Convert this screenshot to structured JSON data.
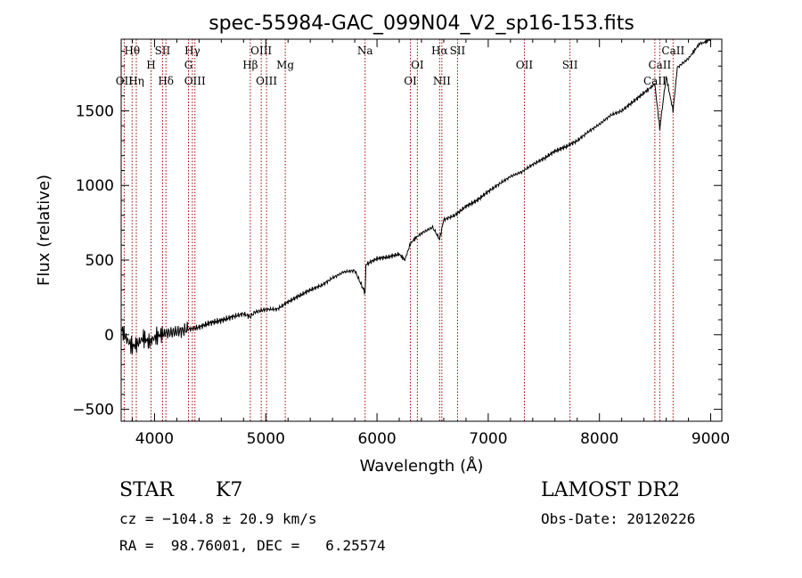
{
  "chart_data": {
    "type": "line",
    "title": "spec-55984-GAC_099N04_V2_sp16-153.fits",
    "xlabel": "Wavelength (Å)",
    "ylabel": "Flux (relative)",
    "xlim": [
      3700,
      9100
    ],
    "ylim": [
      -580,
      1980
    ],
    "xticks": [
      4000,
      5000,
      6000,
      7000,
      8000,
      9000
    ],
    "yticks": [
      -500,
      0,
      500,
      1000,
      1500
    ],
    "grid": false,
    "series": [
      {
        "x": [
          3700,
          3750,
          3800,
          3850,
          3900,
          3950,
          4000,
          4050,
          4100,
          4200,
          4300,
          4400,
          4500,
          4600,
          4700,
          4800,
          4860,
          4900,
          5000,
          5100,
          5200,
          5300,
          5400,
          5500,
          5600,
          5700,
          5800,
          5893,
          5900,
          6000,
          6100,
          6200,
          6250,
          6300,
          6350,
          6400,
          6500,
          6563,
          6600,
          6700,
          6800,
          6900,
          7000,
          7100,
          7200,
          7300,
          7400,
          7500,
          7600,
          7700,
          7800,
          7900,
          8000,
          8100,
          8200,
          8300,
          8400,
          8498,
          8542,
          8600,
          8662,
          8700,
          8800,
          8850,
          8900,
          8950,
          9000
        ],
        "y": [
          40,
          -30,
          -80,
          -60,
          -20,
          -50,
          -20,
          0,
          10,
          20,
          35,
          50,
          80,
          95,
          120,
          140,
          120,
          150,
          170,
          170,
          220,
          260,
          300,
          330,
          380,
          420,
          430,
          280,
          470,
          510,
          520,
          540,
          500,
          610,
          650,
          680,
          720,
          640,
          770,
          800,
          860,
          900,
          960,
          1010,
          1060,
          1090,
          1140,
          1180,
          1230,
          1260,
          1300,
          1360,
          1410,
          1470,
          1500,
          1560,
          1620,
          1680,
          1380,
          1730,
          1500,
          1790,
          1850,
          1900,
          1950,
          1960,
          1980
        ]
      }
    ],
    "spectral_lines": [
      {
        "label": "Hθ",
        "x": 3798,
        "row": 0
      },
      {
        "label": "OII",
        "x": 3727,
        "row": 3
      },
      {
        "label": "Hη",
        "x": 3836,
        "row": 3
      },
      {
        "label": "H",
        "x": 3968,
        "row": 1
      },
      {
        "label": "SII",
        "x": 4072,
        "row": 0
      },
      {
        "label": "Hδ",
        "x": 4102,
        "row": 3
      },
      {
        "label": "Hγ",
        "x": 4340,
        "row": 0
      },
      {
        "label": "G",
        "x": 4305,
        "row": 1
      },
      {
        "label": "OIII",
        "x": 4363,
        "row": 3
      },
      {
        "label": "OIII",
        "x": 4959,
        "row": 0
      },
      {
        "label": "Hβ",
        "x": 4861,
        "row": 1
      },
      {
        "label": "Mg",
        "x": 5175,
        "row": 1
      },
      {
        "label": "OIII",
        "x": 5007,
        "row": 3
      },
      {
        "label": "Na",
        "x": 5893,
        "row": 0
      },
      {
        "label": "OI",
        "x": 6363,
        "row": 1
      },
      {
        "label": "OI",
        "x": 6300,
        "row": 3
      },
      {
        "label": "Hα",
        "x": 6563,
        "row": 0
      },
      {
        "label": "SII",
        "x": 6724,
        "row": 0
      },
      {
        "label": "NII",
        "x": 6583,
        "row": 3
      },
      {
        "label": "OII",
        "x": 7325,
        "row": 1
      },
      {
        "label": "SII",
        "x": 7735,
        "row": 1
      },
      {
        "label": "CaII",
        "x": 8662,
        "row": 0
      },
      {
        "label": "CaII",
        "x": 8542,
        "row": 1
      },
      {
        "label": "CaII",
        "x": 8498,
        "row": 3
      }
    ]
  },
  "info": {
    "class_label": "STAR",
    "subclass": "K7",
    "survey": "LAMOST DR2",
    "cz_line": "cz = −104.8 ± 20.9 km/s",
    "obs_date": "Obs-Date: 20120226",
    "coords": "RA =  98.76001, DEC =   6.25574"
  }
}
